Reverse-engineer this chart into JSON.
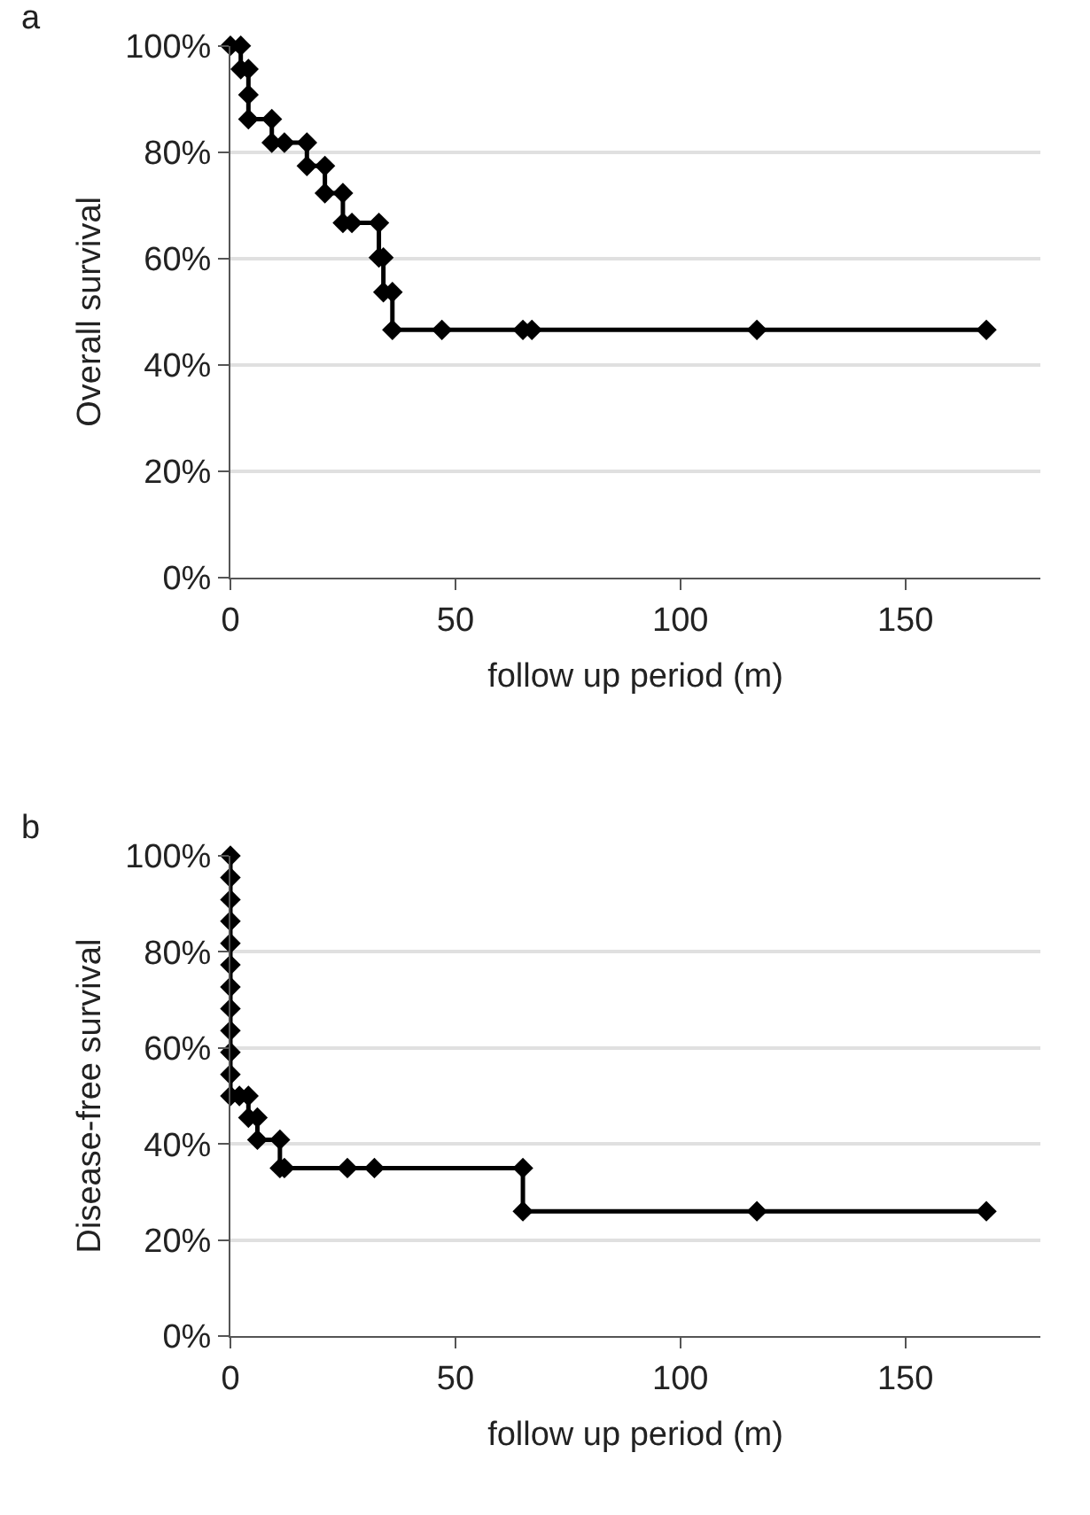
{
  "chart_data": [
    {
      "type": "line",
      "title": "a",
      "xlabel": "follow up period (m)",
      "ylabel": "Overall survival",
      "x": [
        0,
        2.3,
        2.3,
        4,
        4,
        4,
        9.2,
        9.2,
        12,
        17,
        17,
        21,
        21,
        25,
        25,
        27,
        33,
        33,
        34,
        34,
        36,
        36,
        47,
        65,
        67,
        117,
        168
      ],
      "series": [
        {
          "color": "#000000",
          "values": [
            100,
            100,
            95.6,
            95.6,
            90.8,
            86.2,
            86.2,
            81.8,
            81.8,
            81.8,
            77.4,
            77.4,
            72.3,
            72.3,
            66.7,
            66.7,
            66.7,
            60.2,
            60.2,
            53.7,
            53.7,
            46.6,
            46.6,
            46.6,
            46.6,
            46.6,
            46.6
          ]
        }
      ],
      "xlim": [
        0,
        180
      ],
      "xticks": [
        0,
        50,
        100,
        150
      ],
      "ylim": [
        0,
        100
      ],
      "yticks": [
        {
          "value": 0,
          "label": "0%"
        },
        {
          "value": 20,
          "label": "20%"
        },
        {
          "value": 40,
          "label": "40%"
        },
        {
          "value": 60,
          "label": "60%"
        },
        {
          "value": 80,
          "label": "80%"
        },
        {
          "value": 100,
          "label": "100%"
        }
      ],
      "grid": "y",
      "marker": "diamond",
      "line_style": "solid"
    },
    {
      "type": "line",
      "title": "b",
      "xlabel": "follow up period (m)",
      "ylabel": "Disease-free survival",
      "x": [
        0,
        0,
        0,
        0,
        0,
        0,
        0,
        0,
        0,
        0,
        0,
        0,
        2,
        4,
        4,
        6,
        6,
        11,
        11,
        12,
        26,
        32,
        65,
        65,
        117,
        168
      ],
      "series": [
        {
          "color": "#000000",
          "values": [
            100,
            95.5,
            90.9,
            86.4,
            81.8,
            77.3,
            72.7,
            68.2,
            63.6,
            59.1,
            54.5,
            50,
            50,
            50,
            45.5,
            45.5,
            40.9,
            40.9,
            35,
            35,
            35,
            35,
            35,
            26,
            26,
            26
          ]
        }
      ],
      "xlim": [
        0,
        180
      ],
      "xticks": [
        0,
        50,
        100,
        150
      ],
      "ylim": [
        0,
        100
      ],
      "yticks": [
        {
          "value": 0,
          "label": "0%"
        },
        {
          "value": 20,
          "label": "20%"
        },
        {
          "value": 40,
          "label": "40%"
        },
        {
          "value": 60,
          "label": "60%"
        },
        {
          "value": 80,
          "label": "80%"
        },
        {
          "value": 100,
          "label": "100%"
        }
      ],
      "grid": "y",
      "marker": "diamond",
      "line_style": "solid"
    }
  ]
}
